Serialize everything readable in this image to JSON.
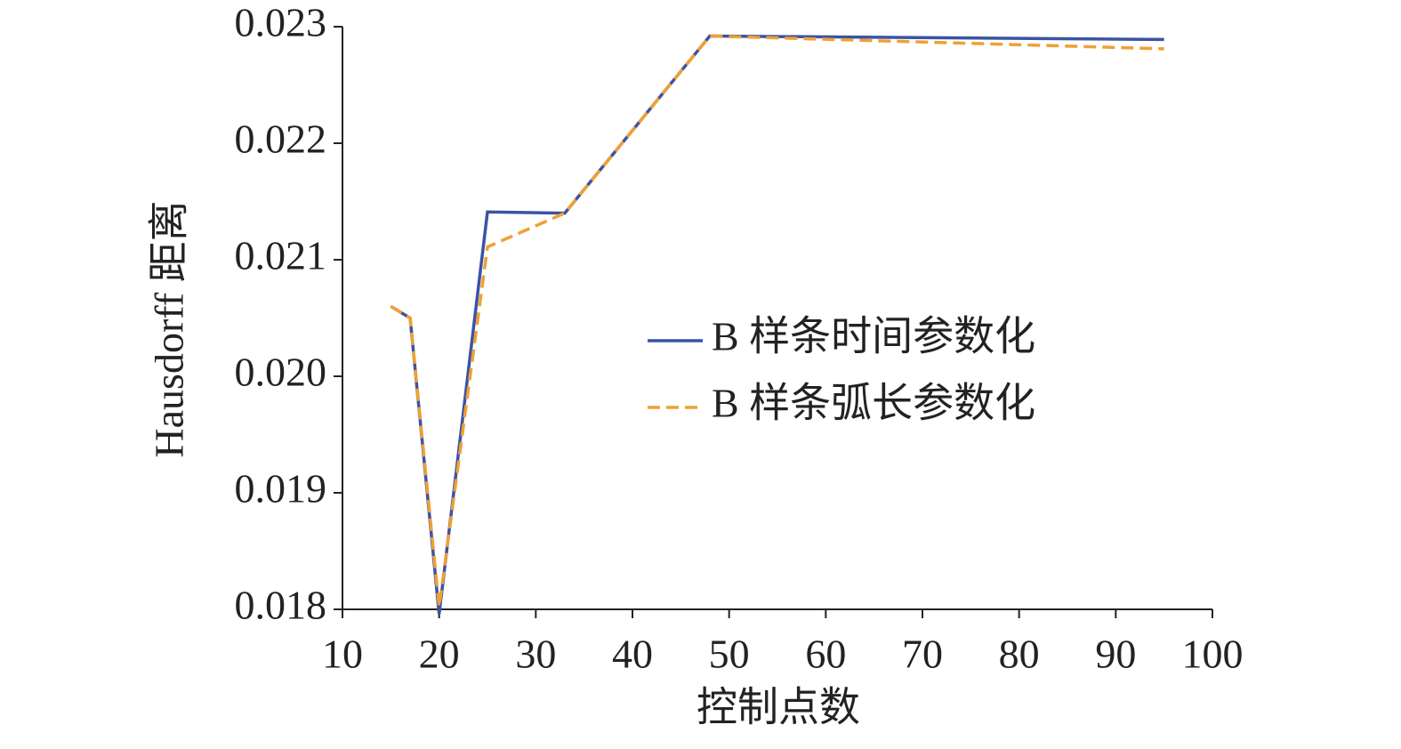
{
  "chart_data": {
    "type": "line",
    "x_label": "控制点数",
    "y_label": "Hausdorff 距离",
    "series": [
      {
        "name": "B 样条时间参数化",
        "color": "#3a53a4",
        "dash": "solid",
        "x": [
          15,
          17,
          20,
          25,
          33,
          48,
          95
        ],
        "values": [
          0.0206,
          0.0205,
          0.01796,
          0.02141,
          0.0214,
          0.02292,
          0.02289
        ]
      },
      {
        "name": "B 样条弧长参数化",
        "color": "#f0a035",
        "dash": "dashed",
        "x": [
          15,
          17,
          20,
          25,
          33,
          48,
          95
        ],
        "values": [
          0.0206,
          0.0205,
          0.01802,
          0.02111,
          0.0214,
          0.02292,
          0.02281
        ]
      }
    ],
    "xlim": [
      10,
      100
    ],
    "xticks": [
      10,
      20,
      30,
      40,
      50,
      60,
      70,
      80,
      90,
      100
    ],
    "ylim": [
      0.018,
      0.023
    ],
    "yticks": [
      0.018,
      0.019,
      {
        "value": 0.02,
        "label": "0.020"
      },
      0.021,
      0.022,
      0.023
    ],
    "grid": false,
    "legend": "right"
  }
}
